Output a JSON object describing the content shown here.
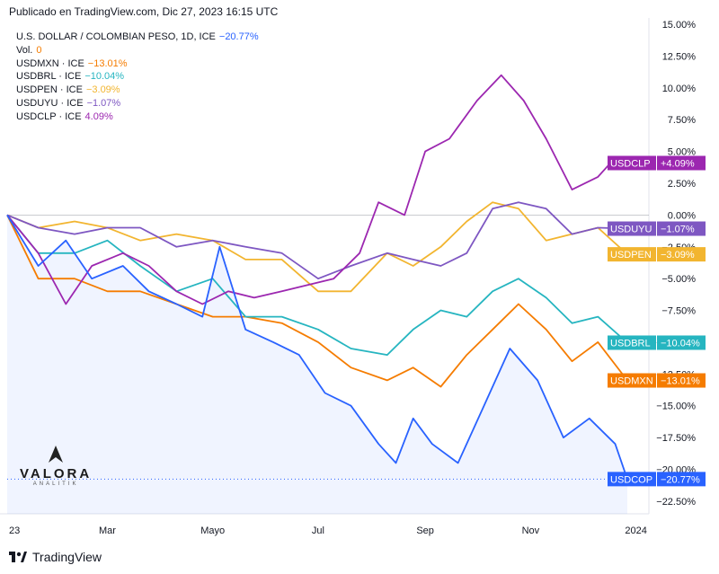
{
  "header": {
    "published": "Publicado en TradingView.com, Dic 27, 2023 16:15 UTC"
  },
  "legend": [
    {
      "label": "U.S. DOLLAR / COLOMBIAN PESO, 1D, ICE",
      "value": "−20.77%",
      "color": "#2962ff"
    },
    {
      "label": "Vol.",
      "value": "0",
      "color": "#f57c00"
    },
    {
      "label": "USDMXN · ICE",
      "value": "−13.01%",
      "color": "#f57c00"
    },
    {
      "label": "USDBRL · ICE",
      "value": "−10.04%",
      "color": "#26b5c0"
    },
    {
      "label": "USDPEN · ICE",
      "value": "−3.09%",
      "color": "#f2b530"
    },
    {
      "label": "USDUYU · ICE",
      "value": "−1.07%",
      "color": "#7e57c2"
    },
    {
      "label": "USDCLP · ICE",
      "value": "4.09%",
      "color": "#9c27b0"
    }
  ],
  "brand": {
    "name": "VALORA",
    "sub": "ANALITIK"
  },
  "footer": {
    "text": "TradingView"
  },
  "chart_data": {
    "type": "line",
    "x_ticks": [
      "23",
      "Mar",
      "Mayo",
      "Jul",
      "Sep",
      "Nov",
      "2024"
    ],
    "y_ticks": [
      "15.00%",
      "12.50%",
      "10.00%",
      "7.50%",
      "5.00%",
      "2.50%",
      "0.00%",
      "−2.50%",
      "−5.00%",
      "−7.50%",
      "−10.00%",
      "−12.50%",
      "−15.00%",
      "−17.50%",
      "−20.00%",
      "−22.50%"
    ],
    "ylim": [
      -23.5,
      15.5
    ],
    "x_domain": [
      "2023-01-02",
      "2023-12-27"
    ],
    "series": [
      {
        "name": "USDCOP",
        "color": "#2962ff",
        "end_label": "−20.77%",
        "points": [
          [
            "2023-01-02",
            0
          ],
          [
            "2023-01-20",
            -4
          ],
          [
            "2023-02-05",
            -2
          ],
          [
            "2023-02-20",
            -5
          ],
          [
            "2023-03-10",
            -4
          ],
          [
            "2023-03-25",
            -6
          ],
          [
            "2023-04-10",
            -7
          ],
          [
            "2023-04-25",
            -8
          ],
          [
            "2023-05-05",
            -2.5
          ],
          [
            "2023-05-20",
            -9
          ],
          [
            "2023-06-05",
            -10
          ],
          [
            "2023-06-20",
            -11
          ],
          [
            "2023-07-05",
            -14
          ],
          [
            "2023-07-20",
            -15
          ],
          [
            "2023-08-05",
            -18
          ],
          [
            "2023-08-15",
            -19.5
          ],
          [
            "2023-08-25",
            -16
          ],
          [
            "2023-09-05",
            -18
          ],
          [
            "2023-09-20",
            -19.5
          ],
          [
            "2023-10-05",
            -15
          ],
          [
            "2023-10-20",
            -10.5
          ],
          [
            "2023-11-05",
            -13
          ],
          [
            "2023-11-20",
            -17.5
          ],
          [
            "2023-12-05",
            -16
          ],
          [
            "2023-12-20",
            -18
          ],
          [
            "2023-12-27",
            -20.77
          ]
        ]
      },
      {
        "name": "USDMXN",
        "color": "#f57c00",
        "end_label": "−13.01%",
        "points": [
          [
            "2023-01-02",
            0
          ],
          [
            "2023-01-20",
            -5
          ],
          [
            "2023-02-10",
            -5
          ],
          [
            "2023-03-01",
            -6
          ],
          [
            "2023-03-20",
            -6
          ],
          [
            "2023-04-10",
            -7
          ],
          [
            "2023-05-01",
            -8
          ],
          [
            "2023-05-20",
            -8
          ],
          [
            "2023-06-10",
            -8.5
          ],
          [
            "2023-07-01",
            -10
          ],
          [
            "2023-07-20",
            -12
          ],
          [
            "2023-08-10",
            -13
          ],
          [
            "2023-08-25",
            -12
          ],
          [
            "2023-09-10",
            -13.5
          ],
          [
            "2023-09-25",
            -11
          ],
          [
            "2023-10-10",
            -9
          ],
          [
            "2023-10-25",
            -7
          ],
          [
            "2023-11-10",
            -9
          ],
          [
            "2023-11-25",
            -11.5
          ],
          [
            "2023-12-10",
            -10
          ],
          [
            "2023-12-27",
            -13.01
          ]
        ]
      },
      {
        "name": "USDBRL",
        "color": "#26b5c0",
        "end_label": "−10.04%",
        "points": [
          [
            "2023-01-02",
            0
          ],
          [
            "2023-01-20",
            -3
          ],
          [
            "2023-02-10",
            -3
          ],
          [
            "2023-03-01",
            -2
          ],
          [
            "2023-03-20",
            -4
          ],
          [
            "2023-04-10",
            -6
          ],
          [
            "2023-05-01",
            -5
          ],
          [
            "2023-05-20",
            -8
          ],
          [
            "2023-06-10",
            -8
          ],
          [
            "2023-07-01",
            -9
          ],
          [
            "2023-07-20",
            -10.5
          ],
          [
            "2023-08-10",
            -11
          ],
          [
            "2023-08-25",
            -9
          ],
          [
            "2023-09-10",
            -7.5
          ],
          [
            "2023-09-25",
            -8
          ],
          [
            "2023-10-10",
            -6
          ],
          [
            "2023-10-25",
            -5
          ],
          [
            "2023-11-10",
            -6.5
          ],
          [
            "2023-11-25",
            -8.5
          ],
          [
            "2023-12-10",
            -8
          ],
          [
            "2023-12-27",
            -10.04
          ]
        ]
      },
      {
        "name": "USDPEN",
        "color": "#f2b530",
        "end_label": "−3.09%",
        "points": [
          [
            "2023-01-02",
            0
          ],
          [
            "2023-01-20",
            -1
          ],
          [
            "2023-02-10",
            -0.5
          ],
          [
            "2023-03-01",
            -1
          ],
          [
            "2023-03-20",
            -2
          ],
          [
            "2023-04-10",
            -1.5
          ],
          [
            "2023-05-01",
            -2
          ],
          [
            "2023-05-20",
            -3.5
          ],
          [
            "2023-06-10",
            -3.5
          ],
          [
            "2023-07-01",
            -6
          ],
          [
            "2023-07-20",
            -6
          ],
          [
            "2023-08-10",
            -3
          ],
          [
            "2023-08-25",
            -4
          ],
          [
            "2023-09-10",
            -2.5
          ],
          [
            "2023-09-25",
            -0.5
          ],
          [
            "2023-10-10",
            1
          ],
          [
            "2023-10-25",
            0.5
          ],
          [
            "2023-11-10",
            -2
          ],
          [
            "2023-11-25",
            -1.5
          ],
          [
            "2023-12-10",
            -1
          ],
          [
            "2023-12-27",
            -3.09
          ]
        ]
      },
      {
        "name": "USDUYU",
        "color": "#7e57c2",
        "end_label": "−1.07%",
        "points": [
          [
            "2023-01-02",
            0
          ],
          [
            "2023-01-20",
            -1
          ],
          [
            "2023-02-10",
            -1.5
          ],
          [
            "2023-03-01",
            -1
          ],
          [
            "2023-03-20",
            -1
          ],
          [
            "2023-04-10",
            -2.5
          ],
          [
            "2023-05-01",
            -2
          ],
          [
            "2023-05-20",
            -2.5
          ],
          [
            "2023-06-10",
            -3
          ],
          [
            "2023-07-01",
            -5
          ],
          [
            "2023-07-20",
            -4
          ],
          [
            "2023-08-10",
            -3
          ],
          [
            "2023-08-25",
            -3.5
          ],
          [
            "2023-09-10",
            -4
          ],
          [
            "2023-09-25",
            -3
          ],
          [
            "2023-10-10",
            0.5
          ],
          [
            "2023-10-25",
            1
          ],
          [
            "2023-11-10",
            0.5
          ],
          [
            "2023-11-25",
            -1.5
          ],
          [
            "2023-12-10",
            -1
          ],
          [
            "2023-12-27",
            -1.07
          ]
        ]
      },
      {
        "name": "USDCLP",
        "color": "#9c27b0",
        "end_label": "+4.09%",
        "points": [
          [
            "2023-01-02",
            0
          ],
          [
            "2023-01-20",
            -3
          ],
          [
            "2023-02-05",
            -7
          ],
          [
            "2023-02-20",
            -4
          ],
          [
            "2023-03-10",
            -3
          ],
          [
            "2023-03-25",
            -4
          ],
          [
            "2023-04-10",
            -6
          ],
          [
            "2023-04-25",
            -7
          ],
          [
            "2023-05-10",
            -6
          ],
          [
            "2023-05-25",
            -6.5
          ],
          [
            "2023-06-10",
            -6
          ],
          [
            "2023-06-25",
            -5.5
          ],
          [
            "2023-07-10",
            -5
          ],
          [
            "2023-07-25",
            -3
          ],
          [
            "2023-08-05",
            1
          ],
          [
            "2023-08-20",
            0
          ],
          [
            "2023-09-01",
            5
          ],
          [
            "2023-09-15",
            6
          ],
          [
            "2023-10-01",
            9
          ],
          [
            "2023-10-15",
            11
          ],
          [
            "2023-10-28",
            9
          ],
          [
            "2023-11-10",
            6
          ],
          [
            "2023-11-25",
            2
          ],
          [
            "2023-12-10",
            3
          ],
          [
            "2023-12-20",
            4.5
          ],
          [
            "2023-12-27",
            4.09
          ]
        ]
      }
    ]
  }
}
